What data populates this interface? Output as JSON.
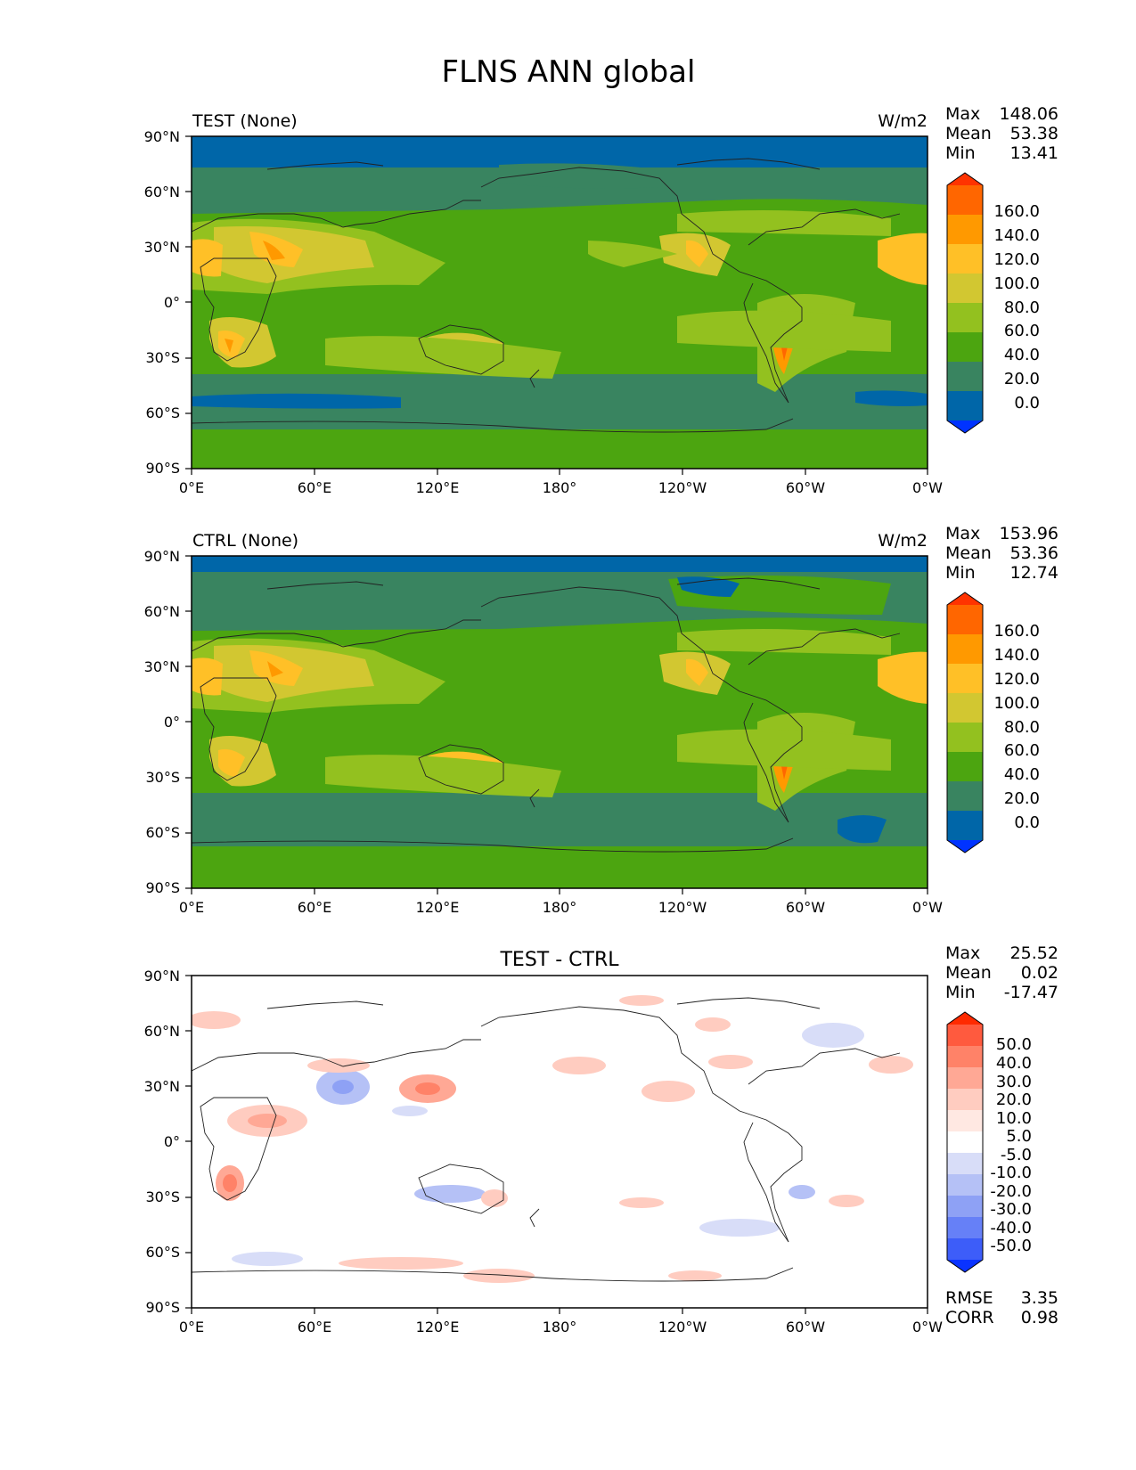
{
  "figure": {
    "title": "FLNS ANN global"
  },
  "axes": {
    "lat_ticks": [
      "90°N",
      "60°N",
      "30°N",
      "0°",
      "30°S",
      "60°S",
      "90°S"
    ],
    "lon_ticks": [
      "0°E",
      "60°E",
      "120°E",
      "180°",
      "120°W",
      "60°W",
      "0°W"
    ]
  },
  "panels": [
    {
      "title_left": "TEST (None)",
      "title_center": "",
      "units": "W/m2",
      "stats": [
        {
          "label": "Max",
          "value": "148.06"
        },
        {
          "label": "Mean",
          "value": "53.38"
        },
        {
          "label": "Min",
          "value": "13.41"
        }
      ],
      "colorbar": {
        "labels": [
          "160.0",
          "140.0",
          "120.0",
          "100.0",
          "80.0",
          "60.0",
          "40.0",
          "20.0",
          "0.0"
        ],
        "colors": [
          "#ff3300",
          "#ff6600",
          "#ff9900",
          "#ffc027",
          "#d2c731",
          "#93c11f",
          "#4ca510",
          "#398460",
          "#0066a8",
          "#0033ff"
        ]
      },
      "metrics": []
    },
    {
      "title_left": "CTRL (None)",
      "title_center": "",
      "units": "W/m2",
      "stats": [
        {
          "label": "Max",
          "value": "153.96"
        },
        {
          "label": "Mean",
          "value": "53.36"
        },
        {
          "label": "Min",
          "value": "12.74"
        }
      ],
      "colorbar": {
        "labels": [
          "160.0",
          "140.0",
          "120.0",
          "100.0",
          "80.0",
          "60.0",
          "40.0",
          "20.0",
          "0.0"
        ],
        "colors": [
          "#ff3300",
          "#ff6600",
          "#ff9900",
          "#ffc027",
          "#d2c731",
          "#93c11f",
          "#4ca510",
          "#398460",
          "#0066a8",
          "#0033ff"
        ]
      },
      "metrics": []
    },
    {
      "title_left": "",
      "title_center": "TEST - CTRL",
      "units": "",
      "stats": [
        {
          "label": "Max",
          "value": "25.52"
        },
        {
          "label": "Mean",
          "value": "0.02"
        },
        {
          "label": "Min",
          "value": "-17.47"
        }
      ],
      "colorbar": {
        "labels": [
          "50.0",
          "40.0",
          "30.0",
          "20.0",
          "10.0",
          "5.0",
          "-5.0",
          "-10.0",
          "-20.0",
          "-30.0",
          "-40.0",
          "-50.0"
        ],
        "colors": [
          "#ff2a00",
          "#ff5a3e",
          "#ff8268",
          "#ffa895",
          "#ffccc0",
          "#ffe8e2",
          "#ffffff",
          "#d8ddf8",
          "#b5c1f6",
          "#8ea1f5",
          "#6680f7",
          "#3d5df9",
          "#0a33ff"
        ]
      },
      "metrics": [
        {
          "label": "RMSE",
          "value": "3.35"
        },
        {
          "label": "CORR",
          "value": "0.98"
        }
      ]
    }
  ]
}
